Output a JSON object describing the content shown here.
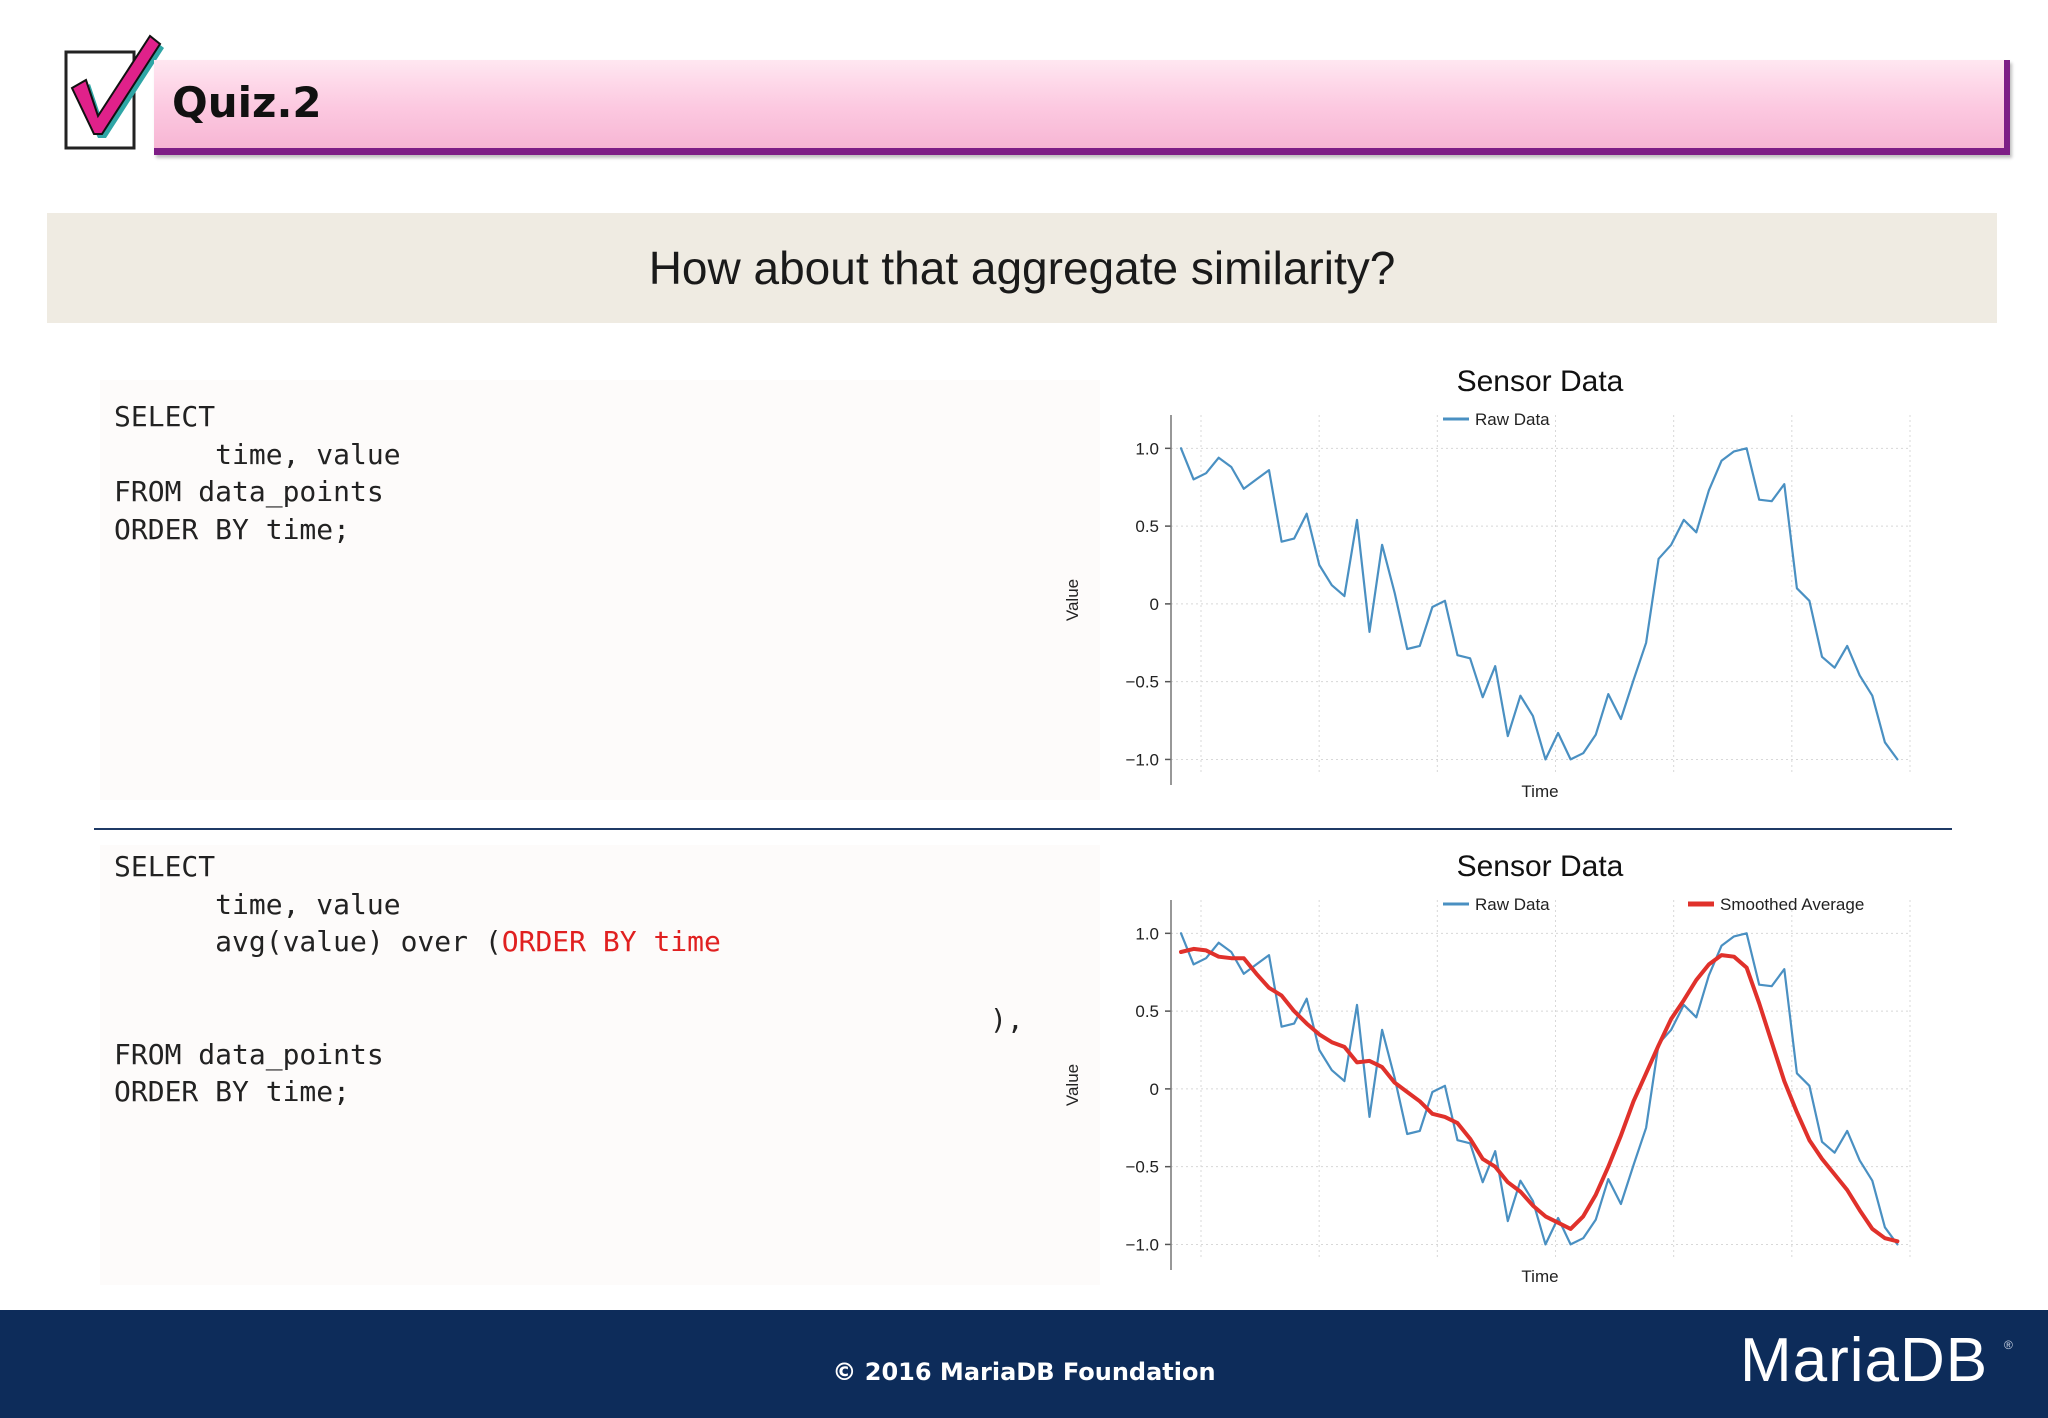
{
  "header": {
    "title": "Quiz.2",
    "icon": "checkmark-icon"
  },
  "question": {
    "text": "How about that aggregate similarity?"
  },
  "code_top": {
    "lines": [
      "SELECT",
      "      time, value",
      "FROM data_points",
      "ORDER BY time;"
    ]
  },
  "code_bottom": {
    "line1": "SELECT",
    "line2": "      time, value",
    "line3_prefix": "      avg(value) over (",
    "line3_highlight": "ORDER BY time",
    "closing": "),",
    "line5": "FROM data_points",
    "line6": "ORDER BY time;"
  },
  "footer": {
    "copyright": "© 2016 MariaDB Foundation",
    "logo": "MariaDB",
    "logo_mark": "®"
  },
  "colors": {
    "raw": "#4a90c2",
    "smoothed": "#e0312b",
    "footer_bg": "#0d2c5a",
    "header_accent": "#7e1e86"
  },
  "chart_data": [
    {
      "type": "line",
      "title": "Sensor Data",
      "xlabel": "Time",
      "ylabel": "Value",
      "ylim": [
        -1.1,
        1.15
      ],
      "xlim": [
        0,
        58
      ],
      "yticks": [
        1.0,
        0.5,
        0,
        -0.5,
        -1.0
      ],
      "ytick_labels": [
        "1.0",
        "0.5",
        "0",
        "−0.5",
        "−1.0"
      ],
      "grid": true,
      "legend_position": "top-center",
      "series": [
        {
          "name": "Raw Data",
          "color": "#4a90c2",
          "x": [
            0,
            1,
            2,
            3,
            4,
            5,
            6,
            7,
            8,
            9,
            10,
            11,
            12,
            13,
            14,
            15,
            16,
            17,
            18,
            19,
            20,
            21,
            22,
            23,
            24,
            25,
            26,
            27,
            28,
            29,
            30,
            31,
            32,
            33,
            34,
            35,
            36,
            37,
            38,
            39,
            40,
            41,
            42,
            43,
            44,
            45,
            46,
            47,
            48,
            49,
            50,
            51,
            52,
            53,
            54,
            55,
            56,
            57
          ],
          "values": [
            1.0,
            0.8,
            0.84,
            0.94,
            0.88,
            0.74,
            0.8,
            0.86,
            0.4,
            0.42,
            0.58,
            0.25,
            0.12,
            0.05,
            0.54,
            -0.18,
            0.38,
            0.07,
            -0.29,
            -0.27,
            -0.02,
            0.02,
            -0.33,
            -0.35,
            -0.6,
            -0.4,
            -0.85,
            -0.59,
            -0.72,
            -1.0,
            -0.83,
            -1.0,
            -0.96,
            -0.84,
            -0.58,
            -0.74,
            -0.49,
            -0.25,
            0.29,
            0.38,
            0.54,
            0.46,
            0.73,
            0.92,
            0.98,
            1.0,
            0.67,
            0.66,
            0.77,
            0.1,
            0.02,
            -0.34,
            -0.41,
            -0.27,
            -0.46,
            -0.59,
            -0.89,
            -1.0
          ]
        }
      ]
    },
    {
      "type": "line",
      "title": "Sensor Data",
      "xlabel": "Time",
      "ylabel": "Value",
      "ylim": [
        -1.1,
        1.15
      ],
      "xlim": [
        0,
        58
      ],
      "yticks": [
        1.0,
        0.5,
        0,
        -0.5,
        -1.0
      ],
      "ytick_labels": [
        "1.0",
        "0.5",
        "0",
        "−0.5",
        "−1.0"
      ],
      "grid": true,
      "legend_position": "top",
      "series": [
        {
          "name": "Raw Data",
          "color": "#4a90c2",
          "x": [
            0,
            1,
            2,
            3,
            4,
            5,
            6,
            7,
            8,
            9,
            10,
            11,
            12,
            13,
            14,
            15,
            16,
            17,
            18,
            19,
            20,
            21,
            22,
            23,
            24,
            25,
            26,
            27,
            28,
            29,
            30,
            31,
            32,
            33,
            34,
            35,
            36,
            37,
            38,
            39,
            40,
            41,
            42,
            43,
            44,
            45,
            46,
            47,
            48,
            49,
            50,
            51,
            52,
            53,
            54,
            55,
            56,
            57
          ],
          "values": [
            1.0,
            0.8,
            0.84,
            0.94,
            0.88,
            0.74,
            0.8,
            0.86,
            0.4,
            0.42,
            0.58,
            0.25,
            0.12,
            0.05,
            0.54,
            -0.18,
            0.38,
            0.07,
            -0.29,
            -0.27,
            -0.02,
            0.02,
            -0.33,
            -0.35,
            -0.6,
            -0.4,
            -0.85,
            -0.59,
            -0.72,
            -1.0,
            -0.83,
            -1.0,
            -0.96,
            -0.84,
            -0.58,
            -0.74,
            -0.49,
            -0.25,
            0.29,
            0.38,
            0.54,
            0.46,
            0.73,
            0.92,
            0.98,
            1.0,
            0.67,
            0.66,
            0.77,
            0.1,
            0.02,
            -0.34,
            -0.41,
            -0.27,
            -0.46,
            -0.59,
            -0.89,
            -1.0
          ]
        },
        {
          "name": "Smoothed Average",
          "color": "#e0312b",
          "x": [
            0,
            1,
            2,
            3,
            4,
            5,
            6,
            7,
            8,
            9,
            10,
            11,
            12,
            13,
            14,
            15,
            16,
            17,
            18,
            19,
            20,
            21,
            22,
            23,
            24,
            25,
            26,
            27,
            28,
            29,
            30,
            31,
            32,
            33,
            34,
            35,
            36,
            37,
            38,
            39,
            40,
            41,
            42,
            43,
            44,
            45,
            46,
            47,
            48,
            49,
            50,
            51,
            52,
            53,
            54,
            55,
            56,
            57
          ],
          "values": [
            0.88,
            0.9,
            0.89,
            0.85,
            0.84,
            0.84,
            0.74,
            0.65,
            0.6,
            0.5,
            0.42,
            0.35,
            0.3,
            0.27,
            0.17,
            0.18,
            0.14,
            0.04,
            -0.02,
            -0.08,
            -0.16,
            -0.18,
            -0.22,
            -0.32,
            -0.45,
            -0.5,
            -0.6,
            -0.66,
            -0.75,
            -0.82,
            -0.86,
            -0.9,
            -0.82,
            -0.68,
            -0.5,
            -0.3,
            -0.08,
            0.1,
            0.28,
            0.45,
            0.57,
            0.7,
            0.8,
            0.86,
            0.85,
            0.78,
            0.55,
            0.3,
            0.05,
            -0.15,
            -0.33,
            -0.45,
            -0.55,
            -0.65,
            -0.78,
            -0.9,
            -0.96,
            -0.98
          ]
        }
      ]
    }
  ]
}
